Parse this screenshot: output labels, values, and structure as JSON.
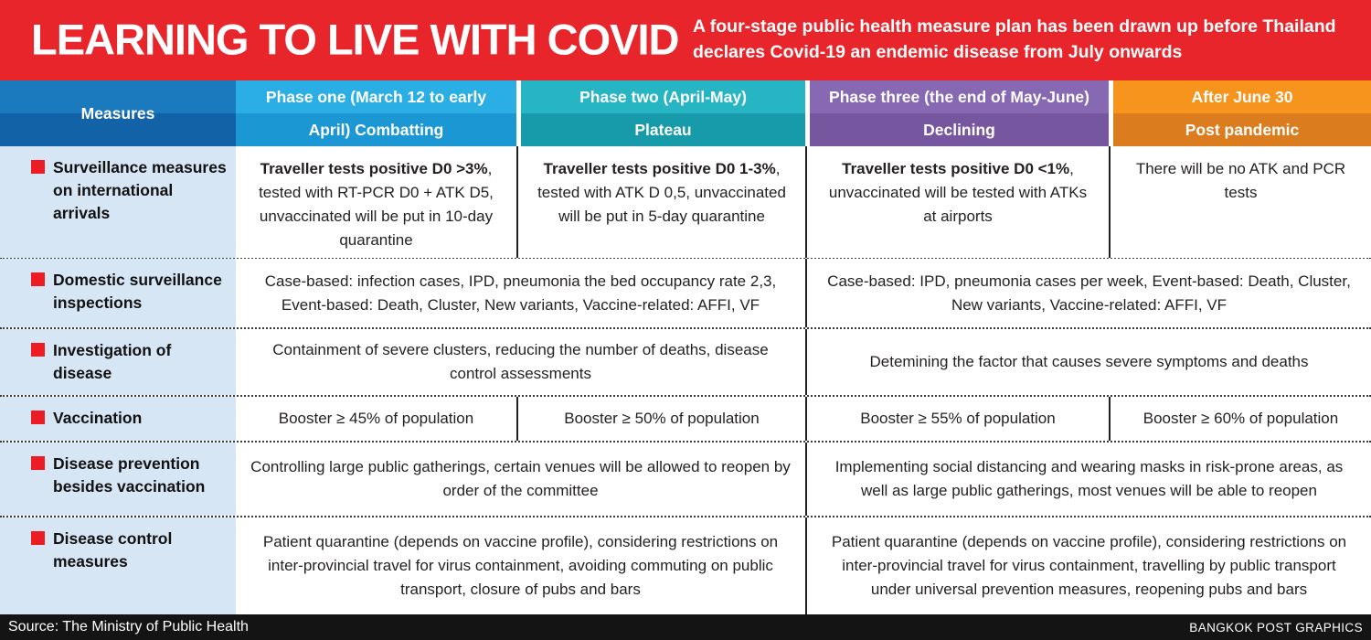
{
  "header": {
    "title": "LEARNING TO LIVE WITH COVID",
    "subtitle_line1": "A four-stage public health measure plan has been drawn up before Thailand",
    "subtitle_line2": "declares Covid-19 an endemic disease from July onwards",
    "bg_color": "#e8252b"
  },
  "chart_data": {
    "type": "table",
    "title": "LEARNING TO LIVE WITH COVID",
    "columns": [
      {
        "id": "measures",
        "line1": "Measures",
        "line2": "",
        "color_top": "#1b79be",
        "color_bottom": "#1162a6"
      },
      {
        "id": "phase-one",
        "line1": "Phase one (March 12 to early",
        "line2": "April) Combatting",
        "color_top": "#2baee3",
        "color_bottom": "#1b97d4"
      },
      {
        "id": "phase-two",
        "line1": "Phase two (April-May)",
        "line2": "Plateau",
        "color_top": "#27b5c4",
        "color_bottom": "#179aaa"
      },
      {
        "id": "phase-three",
        "line1": "Phase three (the end of May-June)",
        "line2": "Declining",
        "color_top": "#8768b2",
        "color_bottom": "#76569f"
      },
      {
        "id": "after-june-30",
        "line1": "After June 30",
        "line2": "Post pandemic",
        "color_top": "#f7941e",
        "color_bottom": "#db7d1e"
      }
    ],
    "rows": [
      {
        "measure": "Surveillance measures on international arrivals",
        "cells": [
          {
            "span": 1,
            "b": "Traveller tests positive D0 >3%",
            "t": ", tested with RT-PCR D0 + ATK D5, unvaccinated will be put in 10-day quarantine"
          },
          {
            "span": 1,
            "b": "Traveller tests positive D0 1-3%",
            "t": ", tested with ATK D 0,5, unvaccinated will be put in 5-day quarantine"
          },
          {
            "span": 1,
            "b": "Traveller tests positive D0 <1%",
            "t": ", unvaccinated will be tested with ATKs at airports"
          },
          {
            "span": 1,
            "b": "",
            "t": "There will be no ATK and PCR tests"
          }
        ]
      },
      {
        "measure": "Domestic surveillance inspections",
        "cells": [
          {
            "span": 2,
            "b": "",
            "t": "Case-based: infection cases, IPD, pneumonia the bed occupancy rate 2,3, Event-based: Death, Cluster, New variants, Vaccine-related: AFFI, VF"
          },
          {
            "span": 2,
            "b": "",
            "t": "Case-based: IPD, pneumonia cases per week, Event-based: Death, Cluster, New variants, Vaccine-related: AFFI, VF"
          }
        ]
      },
      {
        "measure": "Investigation of disease",
        "cells": [
          {
            "span": 2,
            "b": "",
            "t": "Containment of severe clusters, reducing the number of deaths, disease control assessments"
          },
          {
            "span": 2,
            "b": "",
            "t": "Detemining the factor that causes severe symptoms and deaths"
          }
        ]
      },
      {
        "measure": "Vaccination",
        "cells": [
          {
            "span": 1,
            "b": "",
            "t": "Booster ≥ 45% of population"
          },
          {
            "span": 1,
            "b": "",
            "t": "Booster ≥ 50% of population"
          },
          {
            "span": 1,
            "b": "",
            "t": "Booster ≥ 55% of population"
          },
          {
            "span": 1,
            "b": "",
            "t": "Booster ≥ 60% of population"
          }
        ]
      },
      {
        "measure": "Disease prevention besides vaccination",
        "cells": [
          {
            "span": 2,
            "b": "",
            "t": "Controlling large public gatherings, certain venues will be allowed to reopen by order of the committee"
          },
          {
            "span": 2,
            "b": "",
            "t": "Implementing social distancing and wearing masks in risk-prone areas, as well as large public gatherings, most venues will be able to reopen"
          }
        ]
      },
      {
        "measure": "Disease control measures",
        "cells": [
          {
            "span": 2,
            "b": "",
            "t": "Patient quarantine (depends on vaccine profile), considering restrictions on inter-provincial travel for virus containment, avoiding commuting on public transport, closure of pubs and bars"
          },
          {
            "span": 2,
            "b": "",
            "t": "Patient quarantine (depends on vaccine profile), considering restrictions on inter-provincial travel for virus containment, travelling by public transport under universal prevention measures, reopening pubs and bars"
          }
        ]
      }
    ],
    "label_column_bg": "#d7e6f5",
    "bullet_color": "#ec1c24"
  },
  "footer": {
    "source": "Source: The Ministry of Public Health",
    "credit": "BANGKOK POST GRAPHICS",
    "bg_color": "#141414"
  }
}
